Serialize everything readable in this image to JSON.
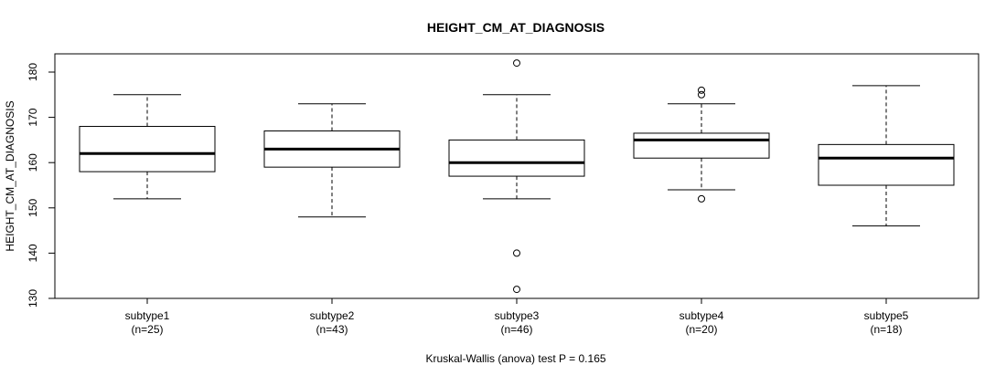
{
  "chart_data": {
    "type": "boxplot",
    "title": "HEIGHT_CM_AT_DIAGNOSIS",
    "ylabel": "HEIGHT_CM_AT_DIAGNOSIS",
    "ylim": [
      130,
      183
    ],
    "yticks": [
      130,
      140,
      150,
      160,
      170,
      180
    ],
    "footnote": "Kruskal-Wallis (anova) test P = 0.165",
    "boxes": [
      {
        "label": "subtype1",
        "n_label": "(n=25)",
        "whisker_low": 152,
        "q1": 158,
        "median": 162,
        "q3": 168,
        "whisker_high": 175,
        "outliers": []
      },
      {
        "label": "subtype2",
        "n_label": "(n=43)",
        "whisker_low": 148,
        "q1": 159,
        "median": 163,
        "q3": 167,
        "whisker_high": 173,
        "outliers": []
      },
      {
        "label": "subtype3",
        "n_label": "(n=46)",
        "whisker_low": 152,
        "q1": 157,
        "median": 160,
        "q3": 165,
        "whisker_high": 175,
        "outliers": [
          182,
          140,
          132
        ]
      },
      {
        "label": "subtype4",
        "n_label": "(n=20)",
        "whisker_low": 154,
        "q1": 161,
        "median": 165,
        "q3": 166.5,
        "whisker_high": 173,
        "outliers": [
          176,
          175,
          152
        ]
      },
      {
        "label": "subtype5",
        "n_label": "(n=18)",
        "whisker_low": 146,
        "q1": 155,
        "median": 161,
        "q3": 164,
        "whisker_high": 177,
        "outliers": []
      }
    ]
  }
}
